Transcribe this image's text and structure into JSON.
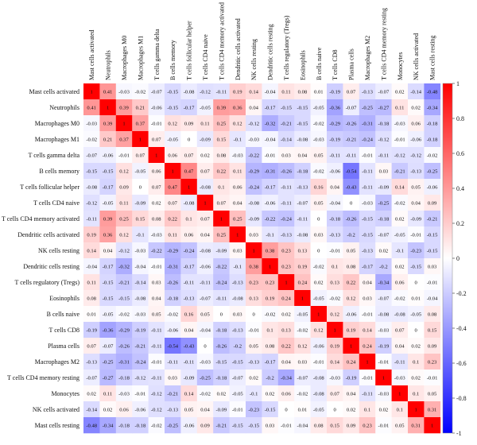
{
  "chart_data": {
    "type": "heatmap",
    "title": "",
    "xlabel": "",
    "ylabel": "",
    "labels": [
      "Mast cells activated",
      "Neutrophils",
      "Macrophages M0",
      "Macrophages M1",
      "T cells gamma delta",
      "B cells memory",
      "T cells follicular helper",
      "T cells CD4 naive",
      "T cells CD4 memory activated",
      "Dendritic cells activated",
      "NK cells resting",
      "Dendritic cells resting",
      "T cells regulatory (Tregs)",
      "Eosinophils",
      "B cells naive",
      "T cells CD8",
      "Plasma cells",
      "Macrophages M2",
      "T cells CD4 memory resting",
      "Monocytes",
      "NK cells activated",
      "Mast cells resting"
    ],
    "matrix": [
      [
        1,
        0.41,
        -0.03,
        -0.02,
        -0.07,
        -0.15,
        -0.08,
        -0.12,
        -0.11,
        0.19,
        0.14,
        -0.04,
        0.11,
        0.08,
        0.01,
        -0.19,
        0.07,
        -0.13,
        -0.07,
        0.02,
        -0.14,
        -0.48
      ],
      [
        0.41,
        1,
        0.39,
        0.21,
        -0.06,
        -0.15,
        -0.17,
        -0.05,
        0.39,
        0.36,
        0.04,
        -0.17,
        -0.15,
        -0.15,
        -0.05,
        -0.36,
        -0.07,
        -0.25,
        -0.27,
        0.11,
        0.02,
        -0.34
      ],
      [
        -0.03,
        0.39,
        1,
        0.37,
        -0.01,
        0.12,
        0.09,
        0.11,
        0.25,
        0.12,
        -0.12,
        -0.32,
        -0.21,
        -0.15,
        -0.02,
        -0.29,
        -0.26,
        -0.31,
        -0.18,
        -0.03,
        0.06,
        -0.18
      ],
      [
        -0.02,
        0.21,
        0.37,
        1,
        0.07,
        -0.05,
        0,
        -0.09,
        0.15,
        -0.1,
        -0.03,
        -0.04,
        -0.14,
        -0.08,
        -0.03,
        -0.19,
        -0.21,
        -0.24,
        -0.12,
        -0.01,
        -0.06,
        -0.18
      ],
      [
        -0.07,
        -0.06,
        -0.01,
        0.07,
        1,
        0.06,
        0.07,
        0.02,
        0.08,
        -0.03,
        -0.22,
        -0.01,
        0.03,
        0.04,
        0.05,
        -0.11,
        -0.11,
        -0.01,
        -0.11,
        -0.12,
        -0.12,
        -0.02
      ],
      [
        -0.15,
        -0.15,
        0.12,
        -0.05,
        0.06,
        1,
        0.47,
        0.07,
        0.22,
        0.11,
        -0.29,
        -0.31,
        -0.26,
        -0.18,
        -0.02,
        -0.06,
        -0.54,
        -0.11,
        0.03,
        -0.21,
        -0.13,
        -0.25
      ],
      [
        -0.08,
        -0.17,
        0.09,
        0,
        0.07,
        0.47,
        1,
        -0.08,
        0.1,
        0.06,
        -0.24,
        -0.17,
        -0.11,
        -0.13,
        0.16,
        0.04,
        -0.43,
        -0.11,
        -0.09,
        0.14,
        0.05,
        -0.06
      ],
      [
        -0.12,
        -0.05,
        0.11,
        -0.09,
        0.02,
        0.07,
        -0.08,
        1,
        0.07,
        0.04,
        -0.08,
        -0.06,
        -0.11,
        -0.07,
        0.05,
        -0.04,
        0,
        -0.03,
        -0.25,
        -0.02,
        0.04,
        0.09
      ],
      [
        -0.11,
        0.39,
        0.25,
        0.15,
        0.08,
        0.22,
        0.1,
        0.07,
        1,
        0.25,
        -0.09,
        -0.22,
        -0.24,
        -0.11,
        0,
        -0.18,
        -0.26,
        -0.15,
        -0.18,
        0.02,
        -0.09,
        -0.21
      ],
      [
        0.19,
        0.36,
        0.12,
        -0.1,
        -0.03,
        0.11,
        0.06,
        0.04,
        0.25,
        1,
        0.03,
        -0.1,
        -0.13,
        -0.08,
        0.03,
        -0.13,
        -0.2,
        -0.15,
        -0.07,
        -0.05,
        -0.01,
        -0.15
      ],
      [
        0.14,
        0.04,
        -0.12,
        -0.03,
        -0.22,
        -0.29,
        -0.24,
        -0.08,
        -0.09,
        0.03,
        1,
        0.38,
        0.23,
        0.13,
        0,
        -0.01,
        0.05,
        -0.13,
        0.02,
        -0.1,
        -0.23,
        -0.15
      ],
      [
        -0.04,
        -0.17,
        -0.32,
        -0.04,
        -0.01,
        -0.31,
        -0.17,
        -0.06,
        -0.22,
        -0.1,
        0.38,
        1,
        0.23,
        0.19,
        -0.02,
        0.1,
        0.08,
        -0.17,
        -0.2,
        0.02,
        -0.15,
        0.03
      ],
      [
        0.11,
        -0.15,
        -0.21,
        -0.14,
        0.03,
        -0.26,
        -0.11,
        -0.11,
        -0.24,
        -0.13,
        0.23,
        0.23,
        1,
        0.24,
        0.02,
        0.13,
        0.22,
        0.04,
        -0.34,
        0.06,
        0,
        -0.01
      ],
      [
        0.08,
        -0.15,
        -0.15,
        -0.08,
        0.04,
        -0.18,
        -0.13,
        -0.07,
        -0.11,
        -0.08,
        0.13,
        0.19,
        0.24,
        1,
        -0.05,
        -0.02,
        0.12,
        0.03,
        -0.07,
        -0.02,
        0.01,
        -0.04
      ],
      [
        0.01,
        -0.05,
        -0.02,
        -0.03,
        0.05,
        -0.02,
        0.16,
        0.05,
        0,
        0.03,
        0,
        -0.02,
        0.02,
        -0.05,
        1,
        0.12,
        -0.06,
        -0.01,
        -0.08,
        -0.08,
        -0.05,
        0.08
      ],
      [
        -0.19,
        -0.36,
        -0.29,
        -0.19,
        -0.11,
        -0.06,
        0.04,
        -0.04,
        -0.18,
        -0.13,
        -0.01,
        0.1,
        0.13,
        -0.02,
        0.12,
        1,
        0.19,
        0.14,
        -0.03,
        0.07,
        0,
        0.15
      ],
      [
        0.07,
        -0.07,
        -0.26,
        -0.21,
        -0.11,
        -0.54,
        -0.43,
        0,
        -0.26,
        -0.2,
        0.05,
        0.08,
        0.22,
        0.12,
        -0.06,
        0.19,
        1,
        0.24,
        -0.19,
        0.04,
        0.02,
        0.09
      ],
      [
        -0.13,
        -0.25,
        -0.31,
        -0.24,
        -0.01,
        -0.11,
        -0.11,
        -0.03,
        -0.15,
        -0.15,
        -0.13,
        -0.17,
        0.04,
        0.03,
        -0.01,
        0.14,
        0.24,
        1,
        -0.01,
        -0.11,
        0.1,
        0.23
      ],
      [
        -0.07,
        -0.27,
        -0.18,
        -0.12,
        -0.11,
        0.03,
        -0.09,
        -0.25,
        -0.18,
        -0.07,
        0.02,
        -0.2,
        -0.34,
        -0.07,
        -0.08,
        -0.03,
        -0.19,
        -0.01,
        1,
        -0.03,
        0.02,
        -0.01
      ],
      [
        0.02,
        0.11,
        -0.03,
        -0.01,
        -0.12,
        -0.21,
        0.14,
        -0.02,
        0.02,
        -0.05,
        -0.1,
        0.02,
        0.06,
        -0.02,
        -0.08,
        0.07,
        0.04,
        -0.11,
        -0.03,
        1,
        0.1,
        0.05
      ],
      [
        -0.14,
        0.02,
        0.06,
        -0.06,
        -0.12,
        -0.13,
        0.05,
        0.04,
        -0.09,
        -0.01,
        -0.23,
        -0.15,
        0,
        0.01,
        -0.05,
        0,
        0.02,
        0.1,
        0.02,
        0.1,
        1,
        0.31
      ],
      [
        -0.48,
        -0.34,
        -0.18,
        -0.18,
        -0.02,
        -0.25,
        -0.06,
        0.09,
        -0.21,
        -0.15,
        -0.15,
        0.03,
        -0.01,
        -0.04,
        0.08,
        0.15,
        0.09,
        0.23,
        -0.01,
        0.05,
        0.31,
        1
      ]
    ],
    "colorbar": {
      "min": -1,
      "max": 1,
      "ticks": [
        "1",
        "0.8",
        "0.6",
        "0.4",
        "0.2",
        "0",
        "-0.2",
        "-0.4",
        "-0.6",
        "-0.8",
        "-1"
      ]
    },
    "colors": {
      "negative": "#0000ff",
      "neutral": "#ffffff",
      "positive": "#ff0000"
    },
    "grid": false,
    "legend": "right"
  }
}
